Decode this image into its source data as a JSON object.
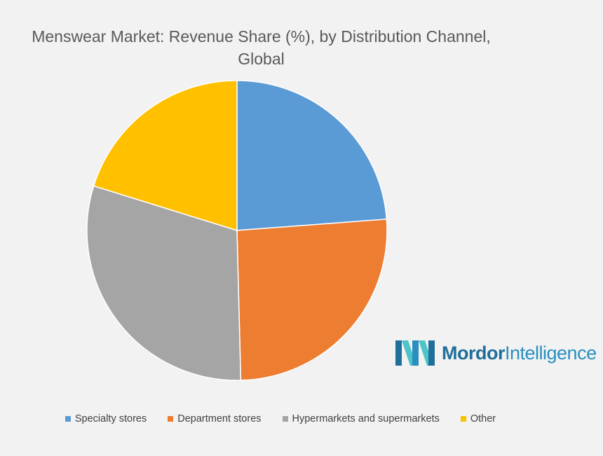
{
  "chart_data": {
    "type": "pie",
    "title_line1": "Menswear Market: Revenue Share (%), by Distribution Channel,",
    "title_line2": "Global",
    "slices": [
      {
        "name": "Specialty stores",
        "value": 23.8,
        "color": "#5b9bd5"
      },
      {
        "name": "Department stores",
        "value": 25.8,
        "color": "#ed7d31"
      },
      {
        "name": "Hypermarkets and supermarkets",
        "value": 30.2,
        "color": "#a5a5a5"
      },
      {
        "name": "Other",
        "value": 20.2,
        "color": "#ffc000"
      }
    ],
    "legend_position": "bottom"
  },
  "logo": {
    "text_bold": "Mordor",
    "text_regular": "Intelligence",
    "icon_dark": "#1f6f9a",
    "icon_light": "#4cc4c8"
  }
}
